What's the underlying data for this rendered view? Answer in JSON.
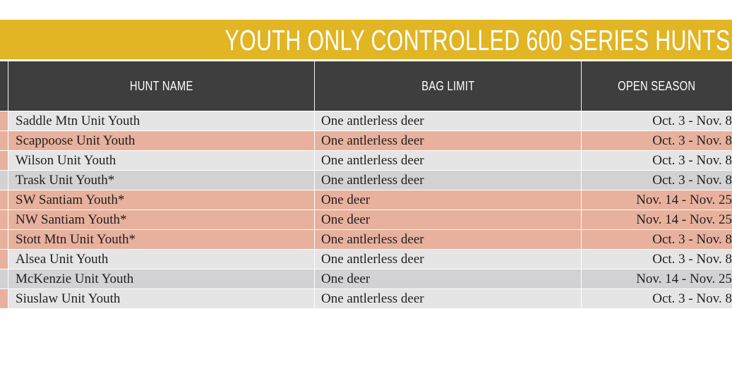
{
  "title": "YOUTH ONLY CONTROLLED 600 SERIES HUNTS",
  "columns": {
    "hunt_name": "HUNT NAME",
    "bag_limit": "BAG LIMIT",
    "open_season": "OPEN SEASON"
  },
  "rows": [
    {
      "hunt_name": "Saddle Mtn Unit Youth",
      "bag_limit": "One antlerless deer",
      "open_season": "Oct. 3 - Nov. 8",
      "shade": "light"
    },
    {
      "hunt_name": "Scappoose Unit Youth",
      "bag_limit": "One antlerless deer",
      "open_season": "Oct. 3 - Nov. 8",
      "shade": "salmon"
    },
    {
      "hunt_name": "Wilson Unit Youth",
      "bag_limit": "One antlerless deer",
      "open_season": "Oct. 3 - Nov. 8",
      "shade": "light"
    },
    {
      "hunt_name": "Trask Unit Youth*",
      "bag_limit": "One antlerless deer",
      "open_season": "Oct. 3 - Nov. 8",
      "shade": "mid"
    },
    {
      "hunt_name": "SW Santiam Youth*",
      "bag_limit": "One deer",
      "open_season": "Nov. 14 - Nov. 25",
      "shade": "salmon"
    },
    {
      "hunt_name": "NW Santiam Youth*",
      "bag_limit": "One deer",
      "open_season": "Nov. 14 - Nov. 25",
      "shade": "salmon"
    },
    {
      "hunt_name": "Stott Mtn Unit Youth*",
      "bag_limit": "One antlerless deer",
      "open_season": "Oct. 3 - Nov. 8",
      "shade": "salmon"
    },
    {
      "hunt_name": "Alsea Unit Youth",
      "bag_limit": "One antlerless deer",
      "open_season": "Oct. 3 - Nov. 8",
      "shade": "light"
    },
    {
      "hunt_name": "McKenzie Unit Youth",
      "bag_limit": "One deer",
      "open_season": "Nov. 14 - Nov. 25",
      "shade": "mid"
    },
    {
      "hunt_name": "Siuslaw Unit Youth",
      "bag_limit": "One antlerless deer",
      "open_season": "Oct. 3 - Nov. 8",
      "shade": "light"
    }
  ],
  "colors": {
    "title_bar": "#e1b523",
    "header": "#3e3e3e",
    "row_light": "#e5e5e5",
    "row_salmon": "#e8b19d",
    "row_mid": "#d2d2d4"
  }
}
